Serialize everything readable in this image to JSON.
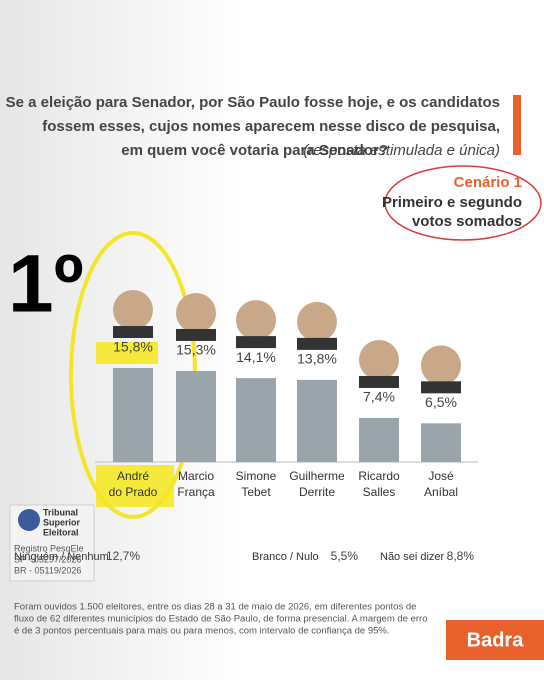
{
  "chart_data": {
    "type": "bar",
    "title": [
      "Se a eleição para Senador, por São Paulo fosse hoje, e os candidatos",
      "fossem esses, cujos nomes aparecem nesse disco de pesquisa,",
      "em quem você votaria para Senador?"
    ],
    "title_note": "(resposta estimulada e única)",
    "scenario": "Cenário 1",
    "scenario_note": [
      "Primeiro e segundo",
      "votos somados"
    ],
    "rank": "1º",
    "categories": [
      [
        "André",
        "do Prado"
      ],
      [
        "Marcio",
        "França"
      ],
      [
        "Simone",
        "Tebet"
      ],
      [
        "Guilherme",
        "Derrite"
      ],
      [
        "Ricardo",
        "Salles"
      ],
      [
        "José",
        "Aníbal"
      ]
    ],
    "values": [
      15.8,
      15.3,
      14.1,
      13.8,
      7.4,
      6.5
    ],
    "value_labels": [
      "15,8%",
      "15,3%",
      "14,1%",
      "13,8%",
      "7,4%",
      "6,5%"
    ],
    "color": "#9aa4ab",
    "others": [
      {
        "label": "Ninguém / Nenhum",
        "value": 12.7,
        "value_label": "12,7%"
      },
      {
        "label": "Branco / Nulo",
        "value": 5.5,
        "value_label": "5,5%"
      },
      {
        "label": "Não sei dizer",
        "value": 8.8,
        "value_label": "8,8%"
      }
    ],
    "registry": {
      "org": [
        "Tribunal",
        "Superior",
        "Eleitoral"
      ],
      "lines": [
        "Registro PesqEle",
        "SP - 05297/2026",
        "BR - 05119/2026"
      ]
    },
    "footer": [
      "Foram ouvidos 1.500 eleitores, entre os dias 28 a 31 de maio de 2026, em diferentes pontos de",
      "fluxo de 62 diferentes municípios do Estado de São Paulo, de forma presencial. A margem de erro",
      "é de 3 pontos percentuais para mais ou para menos, com intervalo de confiança de 95%."
    ],
    "brand": "Badra"
  }
}
